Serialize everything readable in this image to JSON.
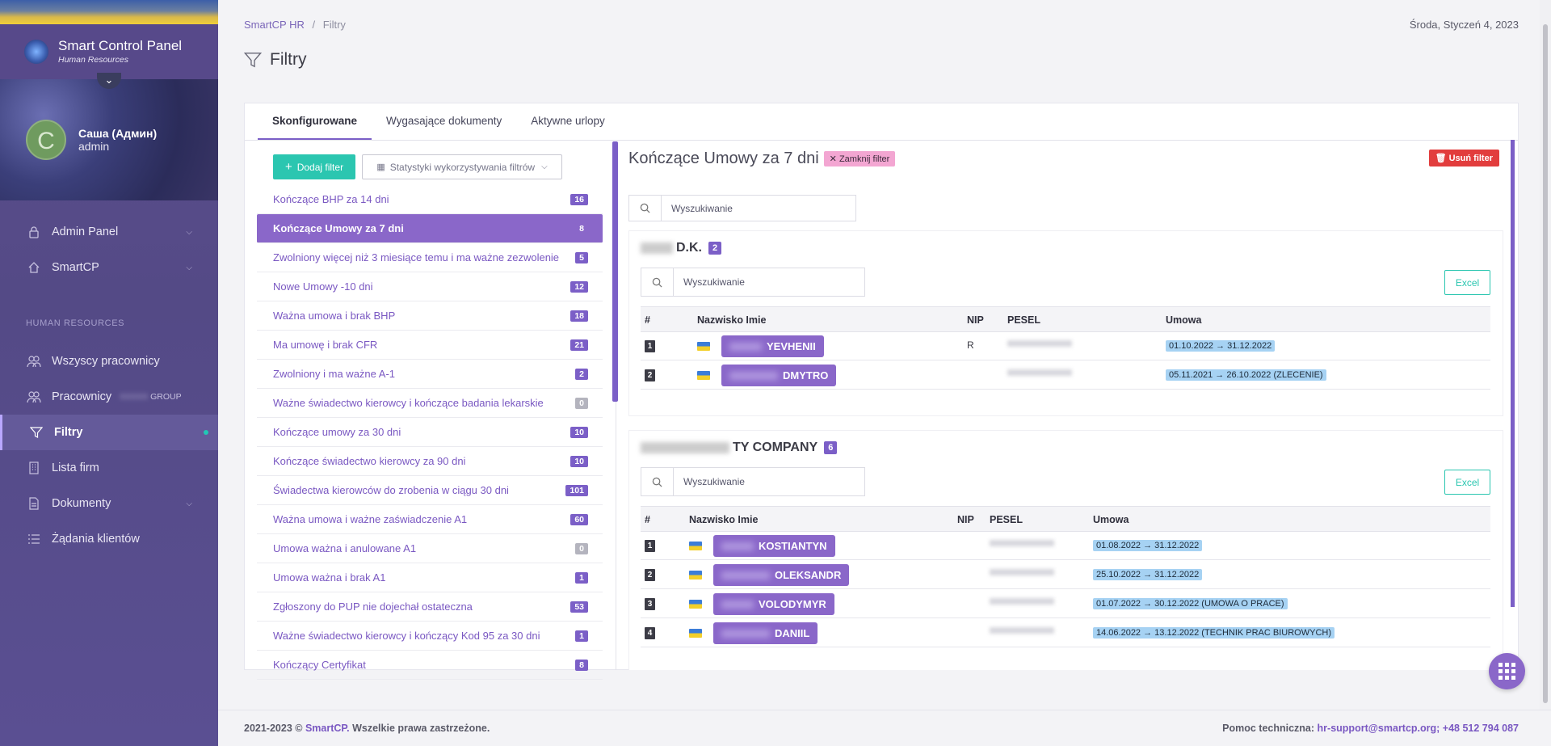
{
  "sidebar": {
    "brand_title": "Smart Control Panel",
    "brand_subtitle": "Human Resources",
    "user_name": "Саша (Админ)",
    "user_role": "admin",
    "avatar_letter": "С",
    "section_title": "HUMAN RESOURCES",
    "nav": [
      {
        "label": "Admin Panel",
        "icon": "lock-icon"
      },
      {
        "label": "SmartCP",
        "icon": "home-icon"
      },
      {
        "label": "Wszyscy pracownicy",
        "icon": "users-icon"
      },
      {
        "label": "Pracownicy",
        "suffix": "GROUP",
        "icon": "users-icon"
      },
      {
        "label": "Filtry",
        "icon": "filter-icon"
      },
      {
        "label": "Lista firm",
        "icon": "building-icon"
      },
      {
        "label": "Dokumenty",
        "icon": "document-icon"
      },
      {
        "label": "Żądania klientów",
        "icon": "list-icon"
      }
    ]
  },
  "header": {
    "breadcrumb_root": "SmartCP HR",
    "breadcrumb_sep": "/",
    "breadcrumb_current": "Filtry",
    "date": "Środa, Styczeń 4, 2023",
    "page_title": "Filtry"
  },
  "tabs": [
    "Skonfigurowane",
    "Wygasające dokumenty",
    "Aktywne urlopy"
  ],
  "left": {
    "add_button": "Dodaj filter",
    "stats_button": "Statystyki wykorzystywania filtrów",
    "filters": [
      {
        "label": "Kończące BHP za 14 dni",
        "count": "16"
      },
      {
        "label": "Kończące Umowy za 7 dni",
        "count": "8"
      },
      {
        "label": "Zwolniony więcej niż 3 miesiące temu i ma ważne zezwolenie",
        "count": "5"
      },
      {
        "label": "Nowe Umowy -10 dni",
        "count": "12"
      },
      {
        "label": "Ważna umowa i brak BHP",
        "count": "18"
      },
      {
        "label": "Ma umowę i brak CFR",
        "count": "21"
      },
      {
        "label": "Zwolniony i ma ważne A-1",
        "count": "2"
      },
      {
        "label": "Ważne świadectwo kierowcy i kończące badania lekarskie",
        "count": "0"
      },
      {
        "label": "Kończące umowy za 30 dni",
        "count": "10"
      },
      {
        "label": "Kończące świadectwo kierowcy za 90 dni",
        "count": "10"
      },
      {
        "label": "Świadectwa kierowców do zrobenia w ciągu 30 dni",
        "count": "101"
      },
      {
        "label": "Ważna umowa i ważne zaświadczenie A1",
        "count": "60"
      },
      {
        "label": "Umowa ważna i anulowane A1",
        "count": "0"
      },
      {
        "label": "Umowa ważna i brak A1",
        "count": "1"
      },
      {
        "label": "Zgłoszony do PUP nie dojechał ostateczna",
        "count": "53"
      },
      {
        "label": "Ważne świadectwo kierowcy i kończący Kod 95 za 30 dni",
        "count": "1"
      },
      {
        "label": "Kończący Certyfikat",
        "count": "8"
      }
    ]
  },
  "right": {
    "filter_title": "Kończące Umowy za 7 dni",
    "close_badge": "Zamknij filter",
    "delete_button": "Usuń filter",
    "search_placeholder": "Wyszukiwanie",
    "excel_label": "Excel",
    "columns": {
      "idx": "#",
      "name": "Nazwisko Imie",
      "nip": "NIP",
      "pesel": "PESEL",
      "contract": "Umowa"
    },
    "companies": [
      {
        "name": "D.K.",
        "count": "2",
        "rows": [
          {
            "idx": "1",
            "name": "YEVHENII",
            "nip": "R",
            "contract": "01.10.2022 → 31.12.2022"
          },
          {
            "idx": "2",
            "name": "DMYTRO",
            "nip": "",
            "contract": "05.11.2021 → 26.10.2022 (ZLECENIE)"
          }
        ]
      },
      {
        "name": "TY COMPANY",
        "count": "6",
        "rows": [
          {
            "idx": "1",
            "name": "KOSTIANTYN",
            "nip": "",
            "contract": "01.08.2022 → 31.12.2022"
          },
          {
            "idx": "2",
            "name": "OLEKSANDR",
            "nip": "",
            "contract": "25.10.2022 → 31.12.2022"
          },
          {
            "idx": "3",
            "name": "VOLODYMYR",
            "nip": "",
            "contract": "01.07.2022 → 30.12.2022 (UMOWA O PRACE)"
          },
          {
            "idx": "4",
            "name": "DANIIL",
            "nip": "",
            "contract": "14.06.2022 → 13.12.2022 (TECHNIK PRAC BIUROWYCH)"
          }
        ]
      }
    ]
  },
  "footer": {
    "copyright_prefix": "2021-2023 ©",
    "brand": "SmartCP.",
    "copyright_suffix": "Wszelkie prawa zastrzeżone.",
    "support_label": "Pomoc techniczna:",
    "support_contact": "hr-support@smartcp.org; +48 512 794 087"
  },
  "colors": {
    "accent": "#7b5fc7",
    "teal": "#2bc6b0",
    "danger": "#e23d3d",
    "sidebar": "#57498a"
  }
}
